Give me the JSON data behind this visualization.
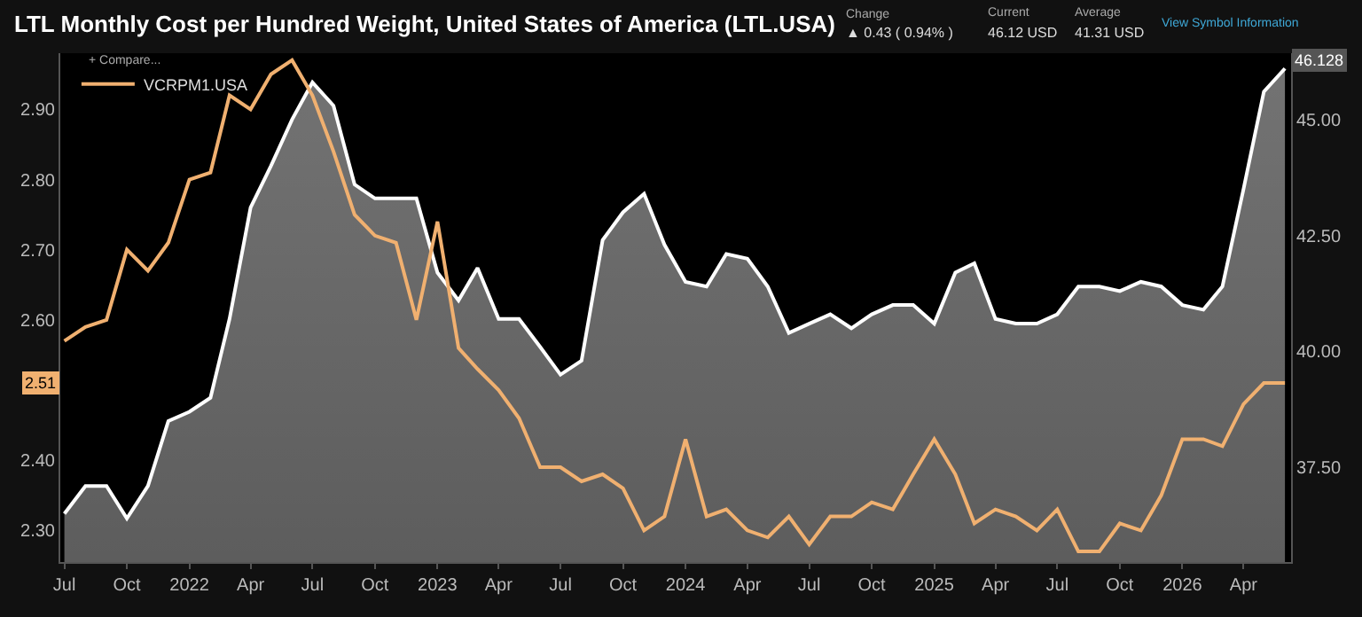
{
  "chart_data": {
    "type": "line",
    "title": "LTL Monthly Cost per Hundred Weight, United States of America (LTL.USA)",
    "annotations": [
      "Change",
      "▲ 0.43 ( 0.94% )",
      "Current",
      "46.12 USD",
      "Average",
      "41.31 USD",
      "View Symbol Information",
      "+ Compare...",
      "2.51",
      "46.128"
    ],
    "x": [
      "2021-07",
      "2021-08",
      "2021-09",
      "2021-10",
      "2021-11",
      "2021-12",
      "2022-01",
      "2022-02",
      "2022-03",
      "2022-04",
      "2022-05",
      "2022-06",
      "2022-07",
      "2022-08",
      "2022-09",
      "2022-10",
      "2022-11",
      "2022-12",
      "2023-01",
      "2023-02",
      "2023-03",
      "2023-04",
      "2023-05",
      "2023-06",
      "2023-07",
      "2023-08",
      "2023-09",
      "2023-10",
      "2023-11",
      "2023-12",
      "2024-01",
      "2024-02",
      "2024-03",
      "2024-04",
      "2024-05",
      "2024-06",
      "2024-07",
      "2024-08",
      "2024-09",
      "2024-10",
      "2024-11",
      "2024-12",
      "2025-01",
      "2025-02",
      "2025-03",
      "2025-04",
      "2025-05",
      "2025-06",
      "2025-07",
      "2025-08",
      "2025-09",
      "2025-10",
      "2025-11",
      "2025-12",
      "2026-01",
      "2026-02",
      "2026-03",
      "2026-04",
      "2026-05",
      "2026-06"
    ],
    "series": [
      {
        "type": "area",
        "axis": "y2",
        "color": "#ffffff",
        "values": [
          36.5,
          37.1,
          37.1,
          36.4,
          37.1,
          38.5,
          38.7,
          39.0,
          40.7,
          43.1,
          44.0,
          45.0,
          45.8,
          45.3,
          43.6,
          43.3,
          43.3,
          43.3,
          41.7,
          41.1,
          41.8,
          40.7,
          40.7,
          40.1,
          39.5,
          39.8,
          42.4,
          43.0,
          43.4,
          42.3,
          41.5,
          41.4,
          42.1,
          42.0,
          41.4,
          40.4,
          40.6,
          40.8,
          40.5,
          40.8,
          41.0,
          41.0,
          40.6,
          41.7,
          41.9,
          40.7,
          40.6,
          40.6,
          40.8,
          41.4,
          41.4,
          41.3,
          41.5,
          41.4,
          41.0,
          40.9,
          41.4,
          43.5,
          45.6,
          46.1
        ]
      },
      {
        "name": "VCRPM1.USA",
        "color": "#f0b070",
        "values": [
          2.57,
          2.59,
          2.6,
          2.7,
          2.67,
          2.71,
          2.8,
          2.81,
          2.92,
          2.9,
          2.95,
          2.97,
          2.92,
          2.84,
          2.75,
          2.72,
          2.71,
          2.6,
          2.74,
          2.56,
          2.53,
          2.5,
          2.46,
          2.39,
          2.39,
          2.37,
          2.38,
          2.36,
          2.3,
          2.32,
          2.43,
          2.32,
          2.33,
          2.3,
          2.29,
          2.32,
          2.28,
          2.32,
          2.32,
          2.34,
          2.33,
          2.38,
          2.43,
          2.38,
          2.31,
          2.33,
          2.32,
          2.3,
          2.33,
          2.27,
          2.27,
          2.31,
          2.3,
          2.35,
          2.43,
          2.43,
          2.42,
          2.48,
          2.51,
          2.51
        ]
      }
    ],
    "xlim": [
      "2021-06-25",
      "2026-06-10"
    ],
    "xticks": [
      {
        "value": "2021-07",
        "label": "Jul"
      },
      {
        "value": "2021-10",
        "label": "Oct"
      },
      {
        "value": "2022-01",
        "label": "2022"
      },
      {
        "value": "2022-04",
        "label": "Apr"
      },
      {
        "value": "2022-07",
        "label": "Jul"
      },
      {
        "value": "2022-10",
        "label": "Oct"
      },
      {
        "value": "2023-01",
        "label": "2023"
      },
      {
        "value": "2023-04",
        "label": "Apr"
      },
      {
        "value": "2023-07",
        "label": "Jul"
      },
      {
        "value": "2023-10",
        "label": "Oct"
      },
      {
        "value": "2024-01",
        "label": "2024"
      },
      {
        "value": "2024-04",
        "label": "Apr"
      },
      {
        "value": "2024-07",
        "label": "Jul"
      },
      {
        "value": "2024-10",
        "label": "Oct"
      },
      {
        "value": "2025-01",
        "label": "2025"
      },
      {
        "value": "2025-04",
        "label": "Apr"
      },
      {
        "value": "2025-07",
        "label": "Jul"
      },
      {
        "value": "2025-10",
        "label": "Oct"
      },
      {
        "value": "2026-01",
        "label": "2026"
      },
      {
        "value": "2026-04",
        "label": "Apr"
      }
    ],
    "ylim": [
      2.255,
      2.98
    ],
    "yticks": [
      {
        "value": 2.3,
        "label": "2.30"
      },
      {
        "value": 2.4,
        "label": "2.40"
      },
      {
        "value": 2.6,
        "label": "2.60"
      },
      {
        "value": 2.7,
        "label": "2.70"
      },
      {
        "value": 2.8,
        "label": "2.80"
      },
      {
        "value": 2.9,
        "label": "2.90"
      }
    ],
    "y2lim": [
      35.46,
      46.43
    ],
    "y2ticks": [
      {
        "value": 37.5,
        "label": "37.50"
      },
      {
        "value": 40.0,
        "label": "40.00"
      },
      {
        "value": 42.5,
        "label": "42.50"
      },
      {
        "value": 45.0,
        "label": "45.00"
      }
    ],
    "legend": "top left"
  }
}
